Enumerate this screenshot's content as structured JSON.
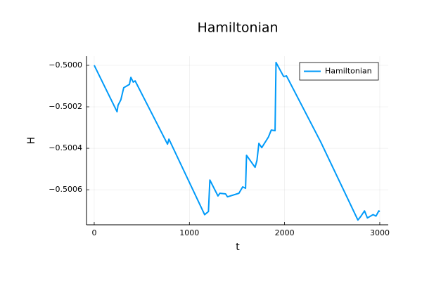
{
  "chart_data": {
    "type": "line",
    "title": "Hamiltonian",
    "x_label": "t",
    "y_label": "H",
    "x": [
      0,
      240,
      250,
      280,
      310,
      370,
      385,
      410,
      430,
      770,
      785,
      1160,
      1200,
      1215,
      1300,
      1320,
      1380,
      1400,
      1520,
      1560,
      1590,
      1600,
      1690,
      1710,
      1730,
      1760,
      1830,
      1860,
      1900,
      1910,
      1990,
      2020,
      2380,
      2770,
      2800,
      2840,
      2870,
      2930,
      2960,
      2990,
      3000
    ],
    "series": [
      {
        "name": "Hamiltonian",
        "color": "#009af9",
        "values": [
          -0.5,
          -0.500224,
          -0.500193,
          -0.500166,
          -0.500108,
          -0.500092,
          -0.500058,
          -0.500081,
          -0.500075,
          -0.50038,
          -0.500356,
          -0.50072,
          -0.500705,
          -0.500553,
          -0.50063,
          -0.500617,
          -0.50062,
          -0.500634,
          -0.500617,
          -0.500586,
          -0.500593,
          -0.500434,
          -0.500492,
          -0.500458,
          -0.500376,
          -0.500397,
          -0.500346,
          -0.500312,
          -0.500315,
          -0.499986,
          -0.500054,
          -0.500051,
          -0.50037,
          -0.500746,
          -0.500729,
          -0.500702,
          -0.500736,
          -0.50072,
          -0.500727,
          -0.500702,
          -0.500705
        ]
      }
    ],
    "xlim": [
      -81,
      3089
    ],
    "ylim": [
      -0.500769,
      -0.499956
    ],
    "xticks": [
      0,
      1000,
      2000,
      3000
    ],
    "yticks": [
      {
        "value": -0.5,
        "label": "−0.5000"
      },
      {
        "value": -0.5002,
        "label": "−0.5002"
      },
      {
        "value": -0.5004,
        "label": "−0.5004"
      },
      {
        "value": -0.5006,
        "label": "−0.5006"
      }
    ],
    "grid": true,
    "legend": "top-right"
  }
}
